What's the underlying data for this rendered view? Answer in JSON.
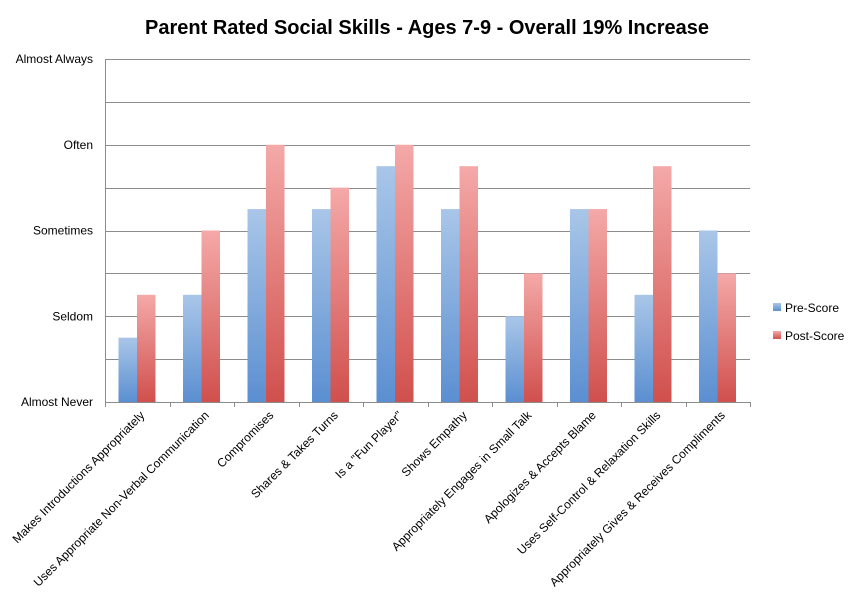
{
  "chart_data": {
    "type": "bar",
    "title": "Parent Rated Social Skills - Ages 7-9 - Overall 19% Increase",
    "xlabel": "",
    "ylabel": "",
    "ylim": [
      0,
      4
    ],
    "y_ticks": [
      {
        "value": 0,
        "label": "Almost Never"
      },
      {
        "value": 1,
        "label": "Seldom"
      },
      {
        "value": 2,
        "label": "Sometimes"
      },
      {
        "value": 3,
        "label": "Often"
      },
      {
        "value": 4,
        "label": "Almost Always"
      }
    ],
    "grid": true,
    "grid_step": 0.5,
    "legend_position": "right",
    "categories": [
      "Makes Introductions Appropriately",
      "Uses Appropriate Non-Verbal Communication",
      "Compromises",
      "Shares & Takes Turns",
      "Is a \"Fun Player\"",
      "Shows Empathy",
      "Appropriately Engages in Small Talk",
      "Apologizes & Accepts Blame",
      "Uses Self-Control & Relaxation Skills",
      "Appropriately Gives & Receives Compliments"
    ],
    "series": [
      {
        "name": "Pre-Score",
        "color_top": "#a9c6e8",
        "color_bottom": "#5b8fd1",
        "values": [
          0.75,
          1.25,
          2.25,
          2.25,
          2.75,
          2.25,
          1.0,
          2.25,
          1.25,
          2.0
        ]
      },
      {
        "name": "Post-Score",
        "color_top": "#f4a9a8",
        "color_bottom": "#d0504d",
        "values": [
          1.25,
          2.0,
          3.0,
          2.5,
          3.0,
          2.75,
          1.5,
          2.25,
          2.75,
          1.5
        ]
      }
    ]
  }
}
